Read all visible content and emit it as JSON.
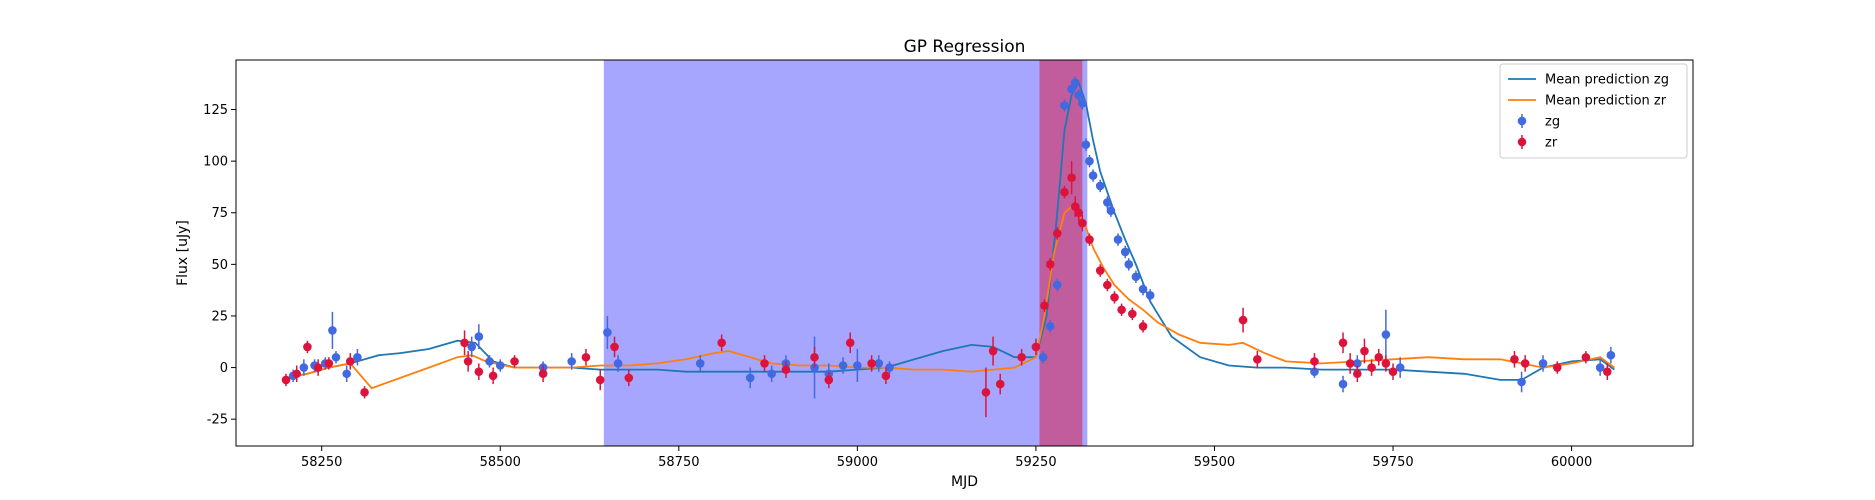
{
  "chart_data": {
    "type": "scatter",
    "title": "GP Regression",
    "xlabel": "MJD",
    "ylabel": "Flux [uJy]",
    "xlim": [
      58130,
      60170
    ],
    "ylim": [
      -38,
      149
    ],
    "xticks": [
      58250,
      58500,
      58750,
      59000,
      59250,
      59500,
      59750,
      60000
    ],
    "yticks": [
      -25,
      0,
      25,
      50,
      75,
      100,
      125
    ],
    "grid": false,
    "legend_position": "top-right",
    "colors": {
      "zg_line": "#1f77b4",
      "zr_line": "#ff7f0e",
      "zg_points": "#4169e1",
      "zr_points": "#dc143c",
      "span_blue": "#0000ff",
      "span_red": "#dc143c"
    },
    "spans": [
      {
        "x0": 58645,
        "x1": 59322,
        "color": "#0000ff",
        "opacity": 0.35
      },
      {
        "x0": 59255,
        "x1": 59315,
        "color": "#dc143c",
        "opacity": 0.5
      }
    ],
    "legend": [
      {
        "label": "Mean prediction zg",
        "kind": "line",
        "color": "#1f77b4"
      },
      {
        "label": "Mean prediction zr",
        "kind": "line",
        "color": "#ff7f0e"
      },
      {
        "label": "zg",
        "kind": "errorbar",
        "color": "#4169e1"
      },
      {
        "label": "zr",
        "kind": "errorbar",
        "color": "#dc143c"
      }
    ],
    "series": [
      {
        "name": "Mean prediction zg",
        "kind": "line",
        "color": "#1f77b4",
        "x": [
          58200,
          58230,
          58260,
          58290,
          58310,
          58330,
          58360,
          58400,
          58440,
          58465,
          58490,
          58520,
          58560,
          58600,
          58640,
          58680,
          58720,
          58760,
          58800,
          58840,
          58880,
          58920,
          58960,
          59000,
          59040,
          59080,
          59120,
          59160,
          59190,
          59220,
          59250,
          59265,
          59280,
          59290,
          59300,
          59310,
          59320,
          59330,
          59340,
          59350,
          59360,
          59375,
          59390,
          59410,
          59440,
          59480,
          59520,
          59560,
          59600,
          59650,
          59700,
          59750,
          59800,
          59850,
          59900,
          59930,
          59960,
          60000,
          60040,
          60060
        ],
        "y": [
          -5,
          -3,
          0,
          2,
          4,
          6,
          7,
          9,
          13,
          12,
          3,
          0,
          0,
          0,
          -1,
          -1,
          -1,
          -2,
          -2,
          -2,
          -2,
          -2,
          -2,
          -1,
          0,
          4,
          8,
          11,
          10,
          5,
          5,
          25,
          75,
          115,
          132,
          138,
          128,
          110,
          95,
          85,
          75,
          62,
          50,
          32,
          15,
          5,
          1,
          0,
          0,
          -1,
          -1,
          -1,
          -2,
          -3,
          -6,
          -6,
          0,
          3,
          4,
          -1
        ]
      },
      {
        "name": "Mean prediction zr",
        "kind": "line",
        "color": "#ff7f0e",
        "x": [
          58200,
          58230,
          58260,
          58290,
          58320,
          58360,
          58400,
          58440,
          58460,
          58480,
          58520,
          58560,
          58600,
          58640,
          58680,
          58720,
          58760,
          58800,
          58820,
          58850,
          58880,
          58920,
          58960,
          59000,
          59040,
          59080,
          59120,
          59160,
          59190,
          59220,
          59250,
          59262,
          59275,
          59290,
          59300,
          59310,
          59320,
          59330,
          59345,
          59360,
          59380,
          59400,
          59420,
          59450,
          59480,
          59520,
          59540,
          59570,
          59600,
          59650,
          59700,
          59750,
          59800,
          59850,
          59900,
          59930,
          59960,
          60000,
          60040,
          60060
        ],
        "y": [
          -5,
          -3,
          0,
          2,
          -10,
          -5,
          0,
          5,
          6,
          3,
          0,
          0,
          0,
          1,
          1,
          2,
          4,
          7,
          8,
          5,
          2,
          1,
          1,
          0,
          0,
          -1,
          -1,
          -2,
          -1,
          0,
          5,
          25,
          55,
          75,
          78,
          75,
          68,
          58,
          48,
          40,
          33,
          28,
          22,
          16,
          12,
          11,
          12,
          7,
          3,
          2,
          3,
          4,
          5,
          4,
          4,
          2,
          0,
          2,
          5,
          0
        ]
      },
      {
        "name": "zg",
        "kind": "errorbar",
        "color": "#4169e1",
        "x": [
          58210,
          58225,
          58240,
          58255,
          58265,
          58270,
          58285,
          58300,
          58460,
          58470,
          58485,
          58500,
          58560,
          58600,
          58650,
          58665,
          58780,
          58850,
          58880,
          58900,
          58940,
          58960,
          58980,
          59000,
          59030,
          59045,
          59260,
          59270,
          59280,
          59290,
          59300,
          59305,
          59310,
          59315,
          59320,
          59325,
          59330,
          59340,
          59350,
          59355,
          59365,
          59375,
          59380,
          59390,
          59400,
          59410,
          59640,
          59680,
          59700,
          59740,
          59760,
          59930,
          59960,
          60040,
          60055
        ],
        "y": [
          -4,
          0,
          1,
          2,
          18,
          5,
          -3,
          5,
          10,
          15,
          3,
          1,
          0,
          3,
          17,
          2,
          2,
          -5,
          -3,
          2,
          0,
          -3,
          1,
          1,
          2,
          0,
          5,
          20,
          40,
          127,
          135,
          138,
          132,
          128,
          108,
          100,
          93,
          88,
          80,
          76,
          62,
          56,
          50,
          44,
          38,
          35,
          -2,
          -8,
          2,
          16,
          0,
          -7,
          2,
          0,
          6
        ],
        "err": [
          3,
          4,
          3,
          3,
          9,
          3,
          4,
          4,
          5,
          6,
          3,
          3,
          3,
          4,
          8,
          4,
          4,
          5,
          4,
          4,
          15,
          5,
          4,
          8,
          4,
          3,
          3,
          3,
          3,
          3,
          3,
          3,
          3,
          3,
          3,
          3,
          3,
          3,
          3,
          3,
          3,
          3,
          3,
          3,
          3,
          3,
          3,
          4,
          4,
          12,
          5,
          5,
          4,
          4,
          4
        ]
      },
      {
        "name": "zr",
        "kind": "errorbar",
        "color": "#dc143c",
        "x": [
          58200,
          58215,
          58230,
          58245,
          58260,
          58290,
          58310,
          58450,
          58455,
          58470,
          58490,
          58520,
          58560,
          58620,
          58640,
          58660,
          58680,
          58810,
          58870,
          58900,
          58940,
          58960,
          58990,
          59020,
          59040,
          59180,
          59190,
          59200,
          59230,
          59250,
          59262,
          59270,
          59280,
          59290,
          59300,
          59305,
          59310,
          59315,
          59325,
          59340,
          59350,
          59360,
          59370,
          59385,
          59400,
          59540,
          59560,
          59640,
          59680,
          59690,
          59700,
          59710,
          59720,
          59730,
          59740,
          59750,
          59920,
          59935,
          59980,
          60020,
          60050
        ],
        "y": [
          -6,
          -3,
          10,
          0,
          2,
          3,
          -12,
          12,
          3,
          -2,
          -4,
          3,
          -3,
          5,
          -6,
          10,
          -5,
          12,
          2,
          -1,
          5,
          -6,
          12,
          2,
          -4,
          -12,
          8,
          -8,
          5,
          10,
          30,
          50,
          65,
          85,
          92,
          78,
          75,
          70,
          62,
          47,
          40,
          34,
          28,
          26,
          20,
          23,
          4,
          3,
          12,
          2,
          -3,
          8,
          0,
          5,
          2,
          -2,
          4,
          2,
          0,
          5,
          -2
        ],
        "err": [
          3,
          4,
          3,
          4,
          3,
          4,
          3,
          6,
          5,
          4,
          4,
          3,
          4,
          4,
          5,
          5,
          4,
          4,
          4,
          4,
          5,
          4,
          5,
          4,
          4,
          12,
          7,
          5,
          4,
          4,
          3,
          3,
          3,
          3,
          8,
          5,
          4,
          4,
          3,
          3,
          3,
          3,
          3,
          3,
          3,
          6,
          4,
          4,
          5,
          5,
          4,
          6,
          4,
          4,
          4,
          4,
          4,
          4,
          3,
          3,
          4
        ]
      }
    ]
  }
}
